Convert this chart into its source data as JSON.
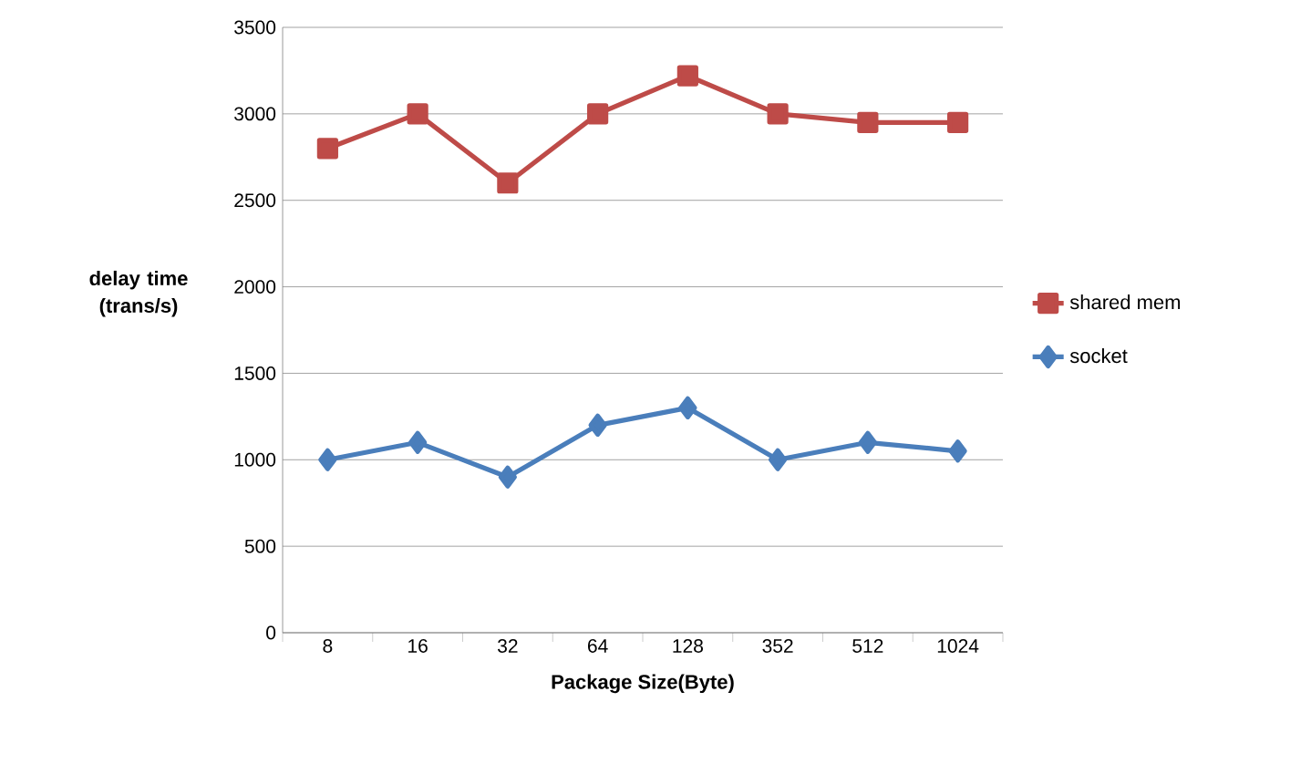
{
  "chart_data": {
    "type": "line",
    "xlabel": "Package Size(Byte)",
    "ylabel": "delay time (trans/s)",
    "categories": [
      "8",
      "16",
      "32",
      "64",
      "128",
      "352",
      "512",
      "1024"
    ],
    "series": [
      {
        "name": "shared mem",
        "color": "#be4b48",
        "marker": "square",
        "values": [
          2800,
          3000,
          2600,
          3000,
          3220,
          3000,
          2950,
          2950
        ]
      },
      {
        "name": "socket",
        "color": "#4a7ebb",
        "marker": "diamond",
        "values": [
          1000,
          1100,
          900,
          1200,
          1300,
          1000,
          1100,
          1050
        ]
      }
    ],
    "ylim": [
      0,
      3500
    ],
    "yticks": [
      0,
      500,
      1000,
      1500,
      2000,
      2500,
      3000,
      3500
    ],
    "grid": "y",
    "legend": "right",
    "line_style": "solid"
  }
}
